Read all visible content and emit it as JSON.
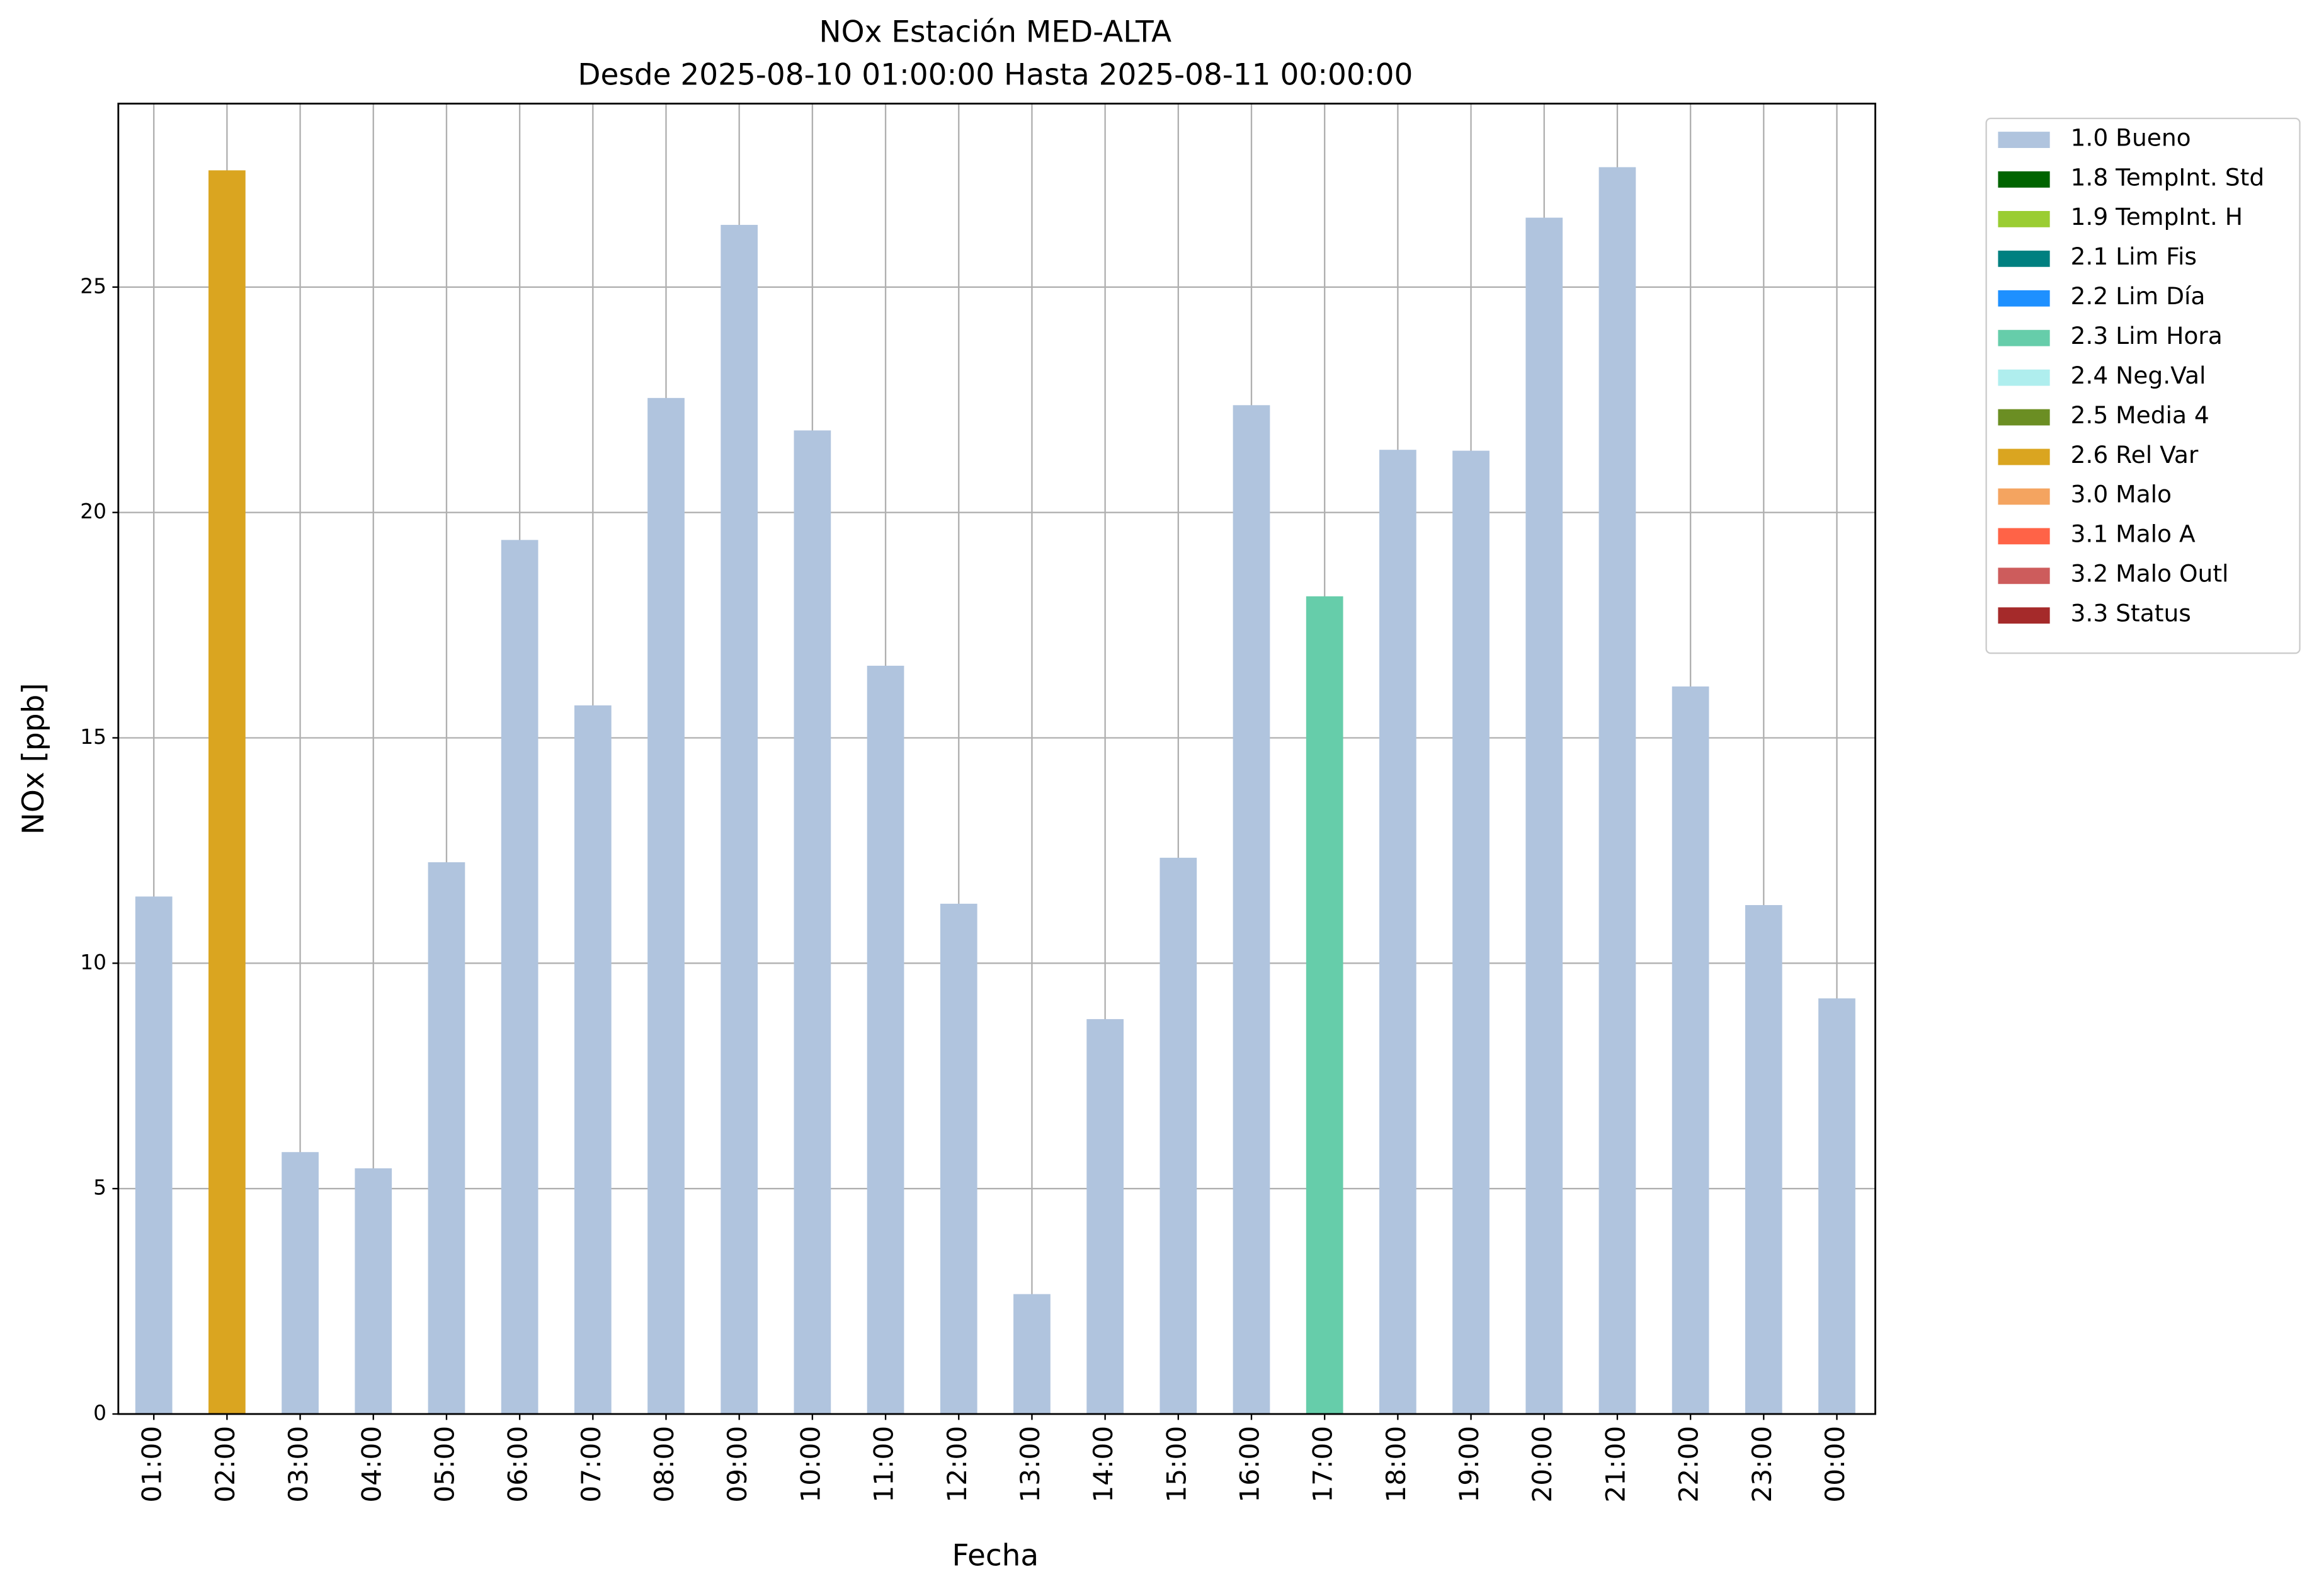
{
  "chart_data": {
    "type": "bar",
    "title": "NOx Estación MED-ALTA",
    "subtitle": "Desde 2025-08-10 01:00:00 Hasta 2025-08-11 00:00:00",
    "x_label": "Fecha",
    "y_label": "NOx [ppb]",
    "categories": [
      "01:00",
      "02:00",
      "03:00",
      "04:00",
      "05:00",
      "06:00",
      "07:00",
      "08:00",
      "09:00",
      "10:00",
      "11:00",
      "12:00",
      "13:00",
      "14:00",
      "15:00",
      "16:00",
      "17:00",
      "18:00",
      "19:00",
      "20:00",
      "21:00",
      "22:00",
      "23:00",
      "00:00"
    ],
    "values": [
      11.48,
      27.59,
      5.81,
      5.45,
      12.24,
      19.39,
      15.72,
      22.54,
      26.38,
      21.82,
      16.6,
      11.32,
      2.66,
      8.76,
      12.34,
      22.38,
      18.14,
      21.39,
      21.37,
      26.54,
      27.66,
      16.14,
      11.29,
      9.22
    ],
    "bar_colors": [
      "#b0c4de",
      "#daa520",
      "#b0c4de",
      "#b0c4de",
      "#b0c4de",
      "#b0c4de",
      "#b0c4de",
      "#b0c4de",
      "#b0c4de",
      "#b0c4de",
      "#b0c4de",
      "#b0c4de",
      "#b0c4de",
      "#b0c4de",
      "#b0c4de",
      "#b0c4de",
      "#66cdaa",
      "#b0c4de",
      "#b0c4de",
      "#b0c4de",
      "#b0c4de",
      "#b0c4de",
      "#b0c4de",
      "#b0c4de"
    ],
    "ylim": [
      0,
      29.07
    ],
    "yticks": [
      0,
      5,
      10,
      15,
      20,
      25
    ],
    "grid": true,
    "legend_position": "outside-upper-right",
    "legend": [
      {
        "label": "1.0 Bueno",
        "color": "#b0c4de"
      },
      {
        "label": "1.8 TempInt. Std",
        "color": "#006400"
      },
      {
        "label": "1.9 TempInt. H",
        "color": "#9acd32"
      },
      {
        "label": "2.1 Lim Fis",
        "color": "#008080"
      },
      {
        "label": "2.2 Lim Día",
        "color": "#1e90ff"
      },
      {
        "label": "2.3 Lim Hora",
        "color": "#66cdaa"
      },
      {
        "label": "2.4 Neg.Val",
        "color": "#afeeee"
      },
      {
        "label": "2.5 Media 4",
        "color": "#6b8e23"
      },
      {
        "label": "2.6 Rel Var",
        "color": "#daa520"
      },
      {
        "label": "3.0 Malo",
        "color": "#f4a460"
      },
      {
        "label": "3.1 Malo A",
        "color": "#ff6347"
      },
      {
        "label": "3.2 Malo Outl",
        "color": "#cd5c5c"
      },
      {
        "label": "3.3 Status",
        "color": "#a52a2a"
      }
    ]
  }
}
